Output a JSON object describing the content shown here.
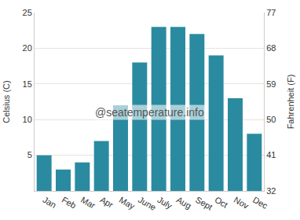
{
  "chart_data": {
    "type": "bar",
    "categories": [
      "Jan",
      "Feb",
      "Mar",
      "Apr",
      "May",
      "June",
      "July",
      "Aug",
      "Sept",
      "Oct",
      "Nov",
      "Dec"
    ],
    "values": [
      5,
      3,
      4,
      7,
      12,
      18,
      23,
      23,
      22,
      19,
      13,
      8
    ],
    "color": "#2a8ba0",
    "y_label": "Celsius (C)",
    "y2_label": "Fahrenheit (F)",
    "ylim": [
      0,
      25
    ],
    "yticks": [
      5,
      10,
      15,
      20,
      25
    ],
    "y2lim": [
      32,
      77
    ],
    "y2ticks": [
      32,
      41,
      50,
      59,
      68,
      77
    ],
    "annotations": [
      "@seatemperature.info"
    ],
    "grid": true
  }
}
